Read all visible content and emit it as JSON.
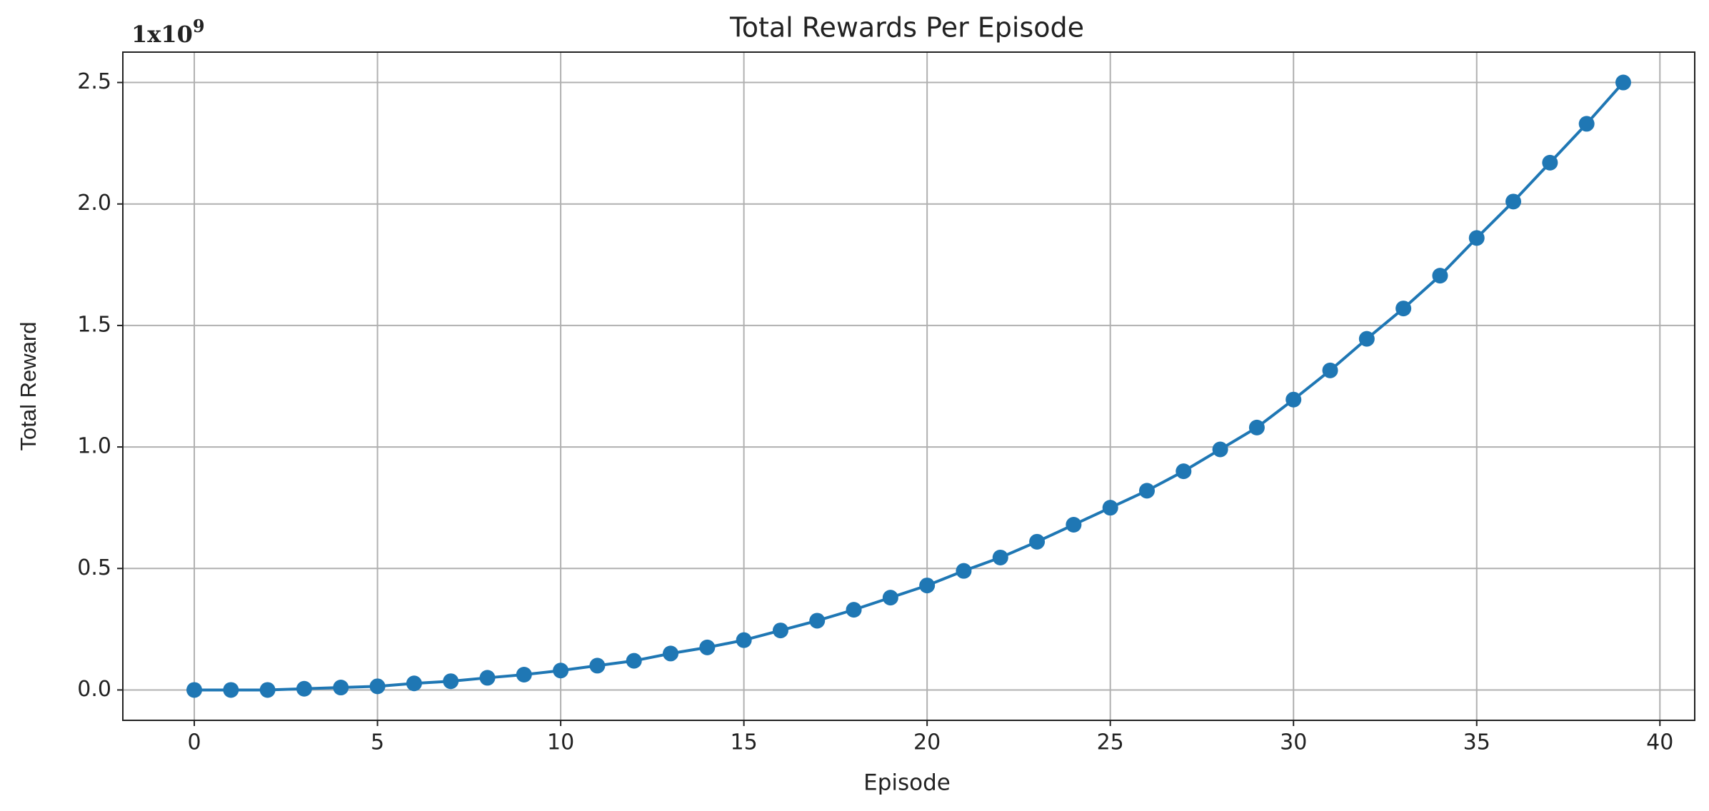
{
  "chart_data": {
    "type": "line",
    "title": "Total Rewards Per Episode",
    "x_label": "Episode",
    "y_label": "Total Reward",
    "offset_base": "1x10",
    "offset_exponent": "9",
    "x": [
      0,
      1,
      2,
      3,
      4,
      5,
      6,
      7,
      8,
      9,
      10,
      11,
      12,
      13,
      14,
      15,
      16,
      17,
      18,
      19,
      20,
      21,
      22,
      23,
      24,
      25,
      26,
      27,
      28,
      29,
      30,
      31,
      32,
      33,
      34,
      35,
      36,
      37,
      38,
      39
    ],
    "series": [
      {
        "name": "Total Reward",
        "color": "#1f77b4",
        "values": [
          0,
          0,
          0,
          0.005,
          0.01,
          0.015,
          0.027,
          0.036,
          0.05,
          0.063,
          0.08,
          0.1,
          0.12,
          0.15,
          0.175,
          0.205,
          0.245,
          0.285,
          0.33,
          0.38,
          0.43,
          0.49,
          0.545,
          0.61,
          0.68,
          0.75,
          0.82,
          0.9,
          0.99,
          1.08,
          1.195,
          1.315,
          1.445,
          1.57,
          1.705,
          1.86,
          2.01,
          2.17,
          2.33,
          2.5
        ]
      }
    ],
    "xlim": [
      -1.95,
      40.95
    ],
    "ylim": [
      -0.125,
      2.625
    ],
    "xticks": [
      0,
      5,
      10,
      15,
      20,
      25,
      30,
      35,
      40
    ],
    "yticks": [
      {
        "value": 0,
        "label": "0.0"
      },
      {
        "value": 0.5,
        "label": "0.5"
      },
      {
        "value": 1,
        "label": "1.0"
      },
      {
        "value": 1.5,
        "label": "1.5"
      },
      {
        "value": 2,
        "label": "2.0"
      },
      {
        "value": 2.5,
        "label": "2.5"
      }
    ],
    "grid": true,
    "markers": true
  }
}
